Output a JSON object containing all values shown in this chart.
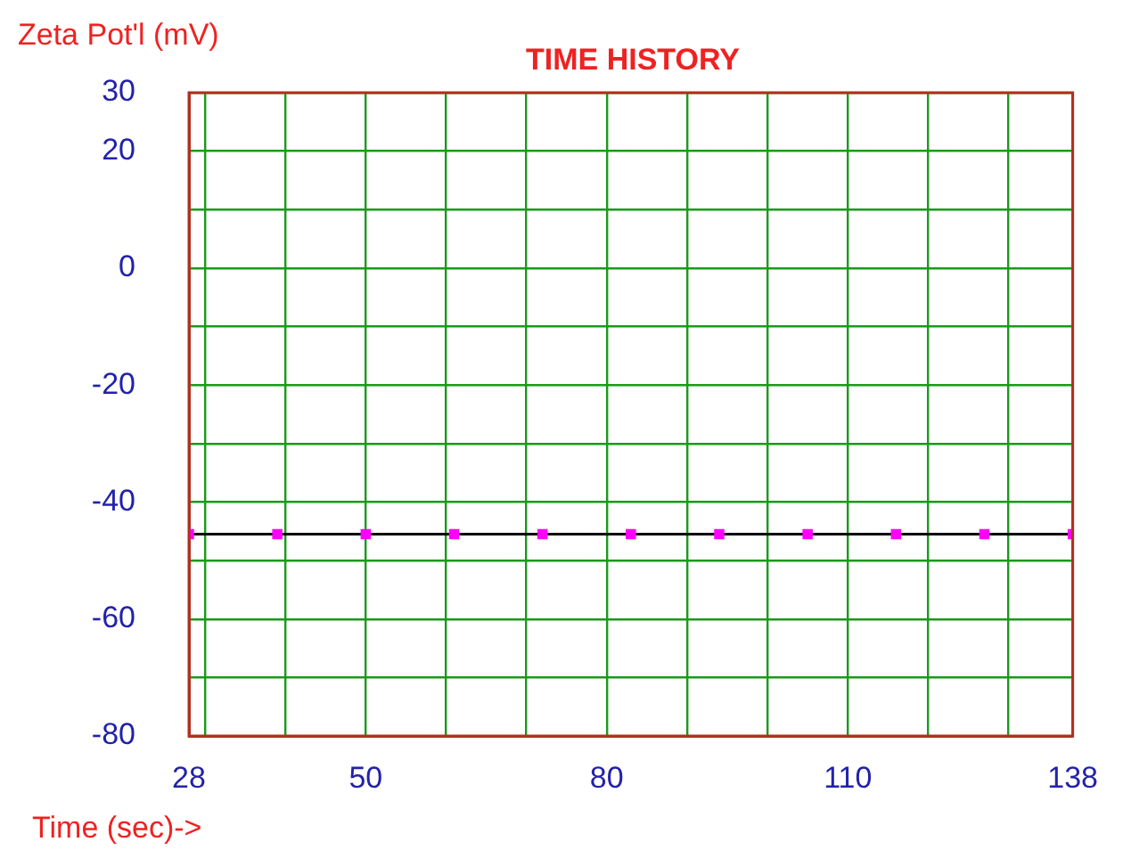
{
  "chart_data": {
    "type": "line",
    "title": "TIME HISTORY",
    "xlabel": "Time (sec)->",
    "ylabel": "Zeta Pot'l (mV)",
    "x": [
      28,
      39,
      50,
      61,
      72,
      83,
      94,
      105,
      116,
      127,
      138
    ],
    "series": [
      {
        "color": "#000000",
        "colors": [
          "#ff00ff",
          "#ff00ff",
          "#ff00ff",
          "#ff00ff",
          "#ff00ff",
          "#ff00ff",
          "#ff00ff",
          "#ff00ff",
          "#ff00ff",
          "#ff00ff",
          "#ff00ff"
        ],
        "values": [
          -45.5,
          -45.5,
          -45.5,
          -45.5,
          -45.5,
          -45.5,
          -45.5,
          -45.5,
          -45.5,
          -45.5,
          -45.5
        ]
      }
    ],
    "xlim": [
      28,
      138
    ],
    "xticks": [
      28,
      {
        "value": 30,
        "label": null
      },
      {
        "value": 40,
        "label": null
      },
      50,
      {
        "value": 60,
        "label": null
      },
      {
        "value": 70,
        "label": null
      },
      80,
      {
        "value": 90,
        "label": null
      },
      {
        "value": 100,
        "label": null
      },
      110,
      {
        "value": 120,
        "label": null
      },
      {
        "value": 130,
        "label": null
      },
      138
    ],
    "ylim": [
      -80,
      30
    ],
    "yticks": [
      30,
      20,
      {
        "value": 10,
        "label": null
      },
      0,
      {
        "value": -10,
        "label": null
      },
      -20,
      {
        "value": -30,
        "label": null
      },
      -40,
      {
        "value": -50,
        "label": null
      },
      -60,
      {
        "value": -70,
        "label": null
      },
      -80
    ],
    "grid": true,
    "marker": "square",
    "line_style": "solid"
  }
}
